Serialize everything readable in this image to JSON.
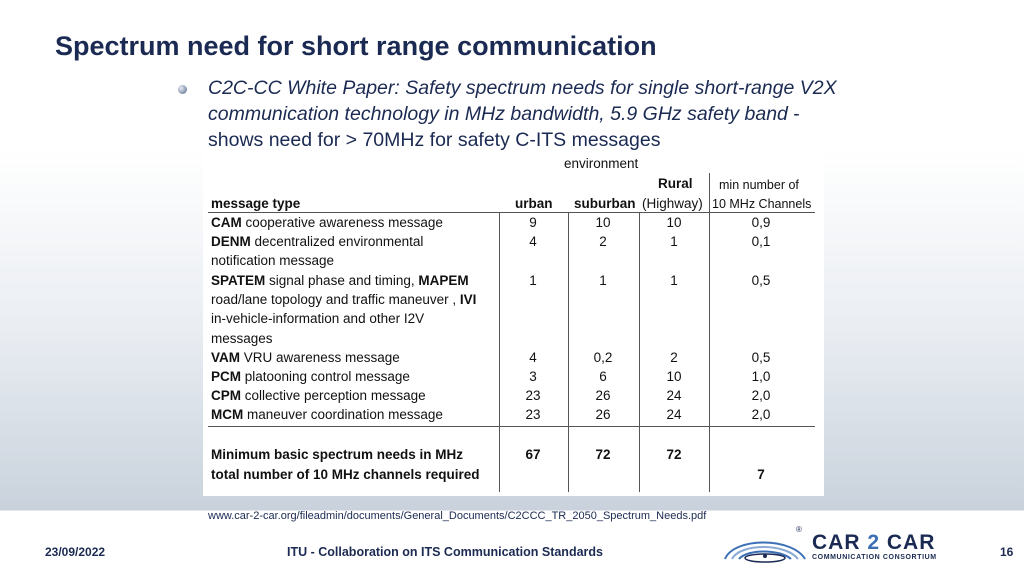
{
  "slide": {
    "title": "Spectrum need for short range communication",
    "bullet_italic": "C2C-CC White Paper: Safety spectrum needs for single short-range V2X communication technology in MHz bandwidth, 5.9 GHz safety band",
    "bullet_rest": " - shows need for > 70MHz for safety C-ITS messages",
    "source": "www.car-2-car.org/fileadmin/documents/General_Documents/C2CCC_TR_2050_Spectrum_Needs.pdf"
  },
  "table": {
    "header_environment": "environment",
    "header_rural": "Rural",
    "header_min": "min number of",
    "header_message_type": "message type",
    "header_urban": "urban",
    "header_suburban": "suburban",
    "header_highway": "(Highway)",
    "header_channels": "10 MHz Channels",
    "rows": [
      {
        "abbr": "CAM",
        "desc": " cooperative awareness message",
        "urban": "9",
        "suburban": "10",
        "rural": "10",
        "min": "0,9"
      },
      {
        "abbr": "DENM",
        "desc": " decentralized environmental",
        "urban": "4",
        "suburban": "2",
        "rural": "1",
        "min": "0,1"
      },
      {
        "desc": "notification message"
      },
      {
        "abbr": "SPATEM",
        "desc": " signal phase and timing, ",
        "abbr2": "MAPEM",
        "urban": "1",
        "suburban": "1",
        "rural": "1",
        "min": "0,5"
      },
      {
        "desc": "road/lane topology and traffic maneuver , ",
        "abbr2": "IVI"
      },
      {
        "desc": "in-vehicle-information and other I2V"
      },
      {
        "desc": "messages"
      },
      {
        "abbr": "VAM",
        "desc": " VRU awareness message",
        "urban": "4",
        "suburban": "0,2",
        "rural": "2",
        "min": "0,5"
      },
      {
        "abbr": "PCM",
        "desc": " platooning control message",
        "urban": "3",
        "suburban": "6",
        "rural": "10",
        "min": "1,0"
      },
      {
        "abbr": "CPM",
        "desc": " collective perception message",
        "urban": "23",
        "suburban": "26",
        "rural": "24",
        "min": "2,0"
      },
      {
        "abbr": "MCM",
        "desc": " maneuver coordination message",
        "urban": "23",
        "suburban": "26",
        "rural": "24",
        "min": "2,0"
      }
    ],
    "summary_label": "Minimum basic spectrum needs in MHz",
    "summary_urban": "67",
    "summary_suburban": "72",
    "summary_rural": "72",
    "channels_label": "total number of 10 MHz channels required",
    "channels_value": "7"
  },
  "footer": {
    "date": "23/09/2022",
    "center": "ITU - Collaboration on ITS Communication Standards",
    "page": "16"
  },
  "logo": {
    "car": "CAR",
    "two": "2",
    "car2": "CAR",
    "subtitle": "COMMUNICATION CONSORTIUM",
    "reg": "®"
  }
}
